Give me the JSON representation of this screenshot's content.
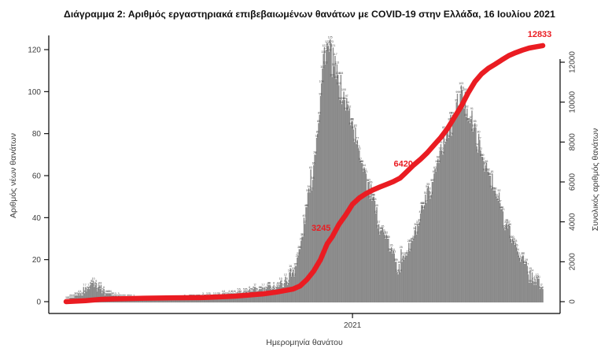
{
  "title": "Διάγραμμα 2: Αριθμός εργαστηριακά επιβεβαιωμένων θανάτων με COVID-19 στην Ελλάδα, 16 Ιουλίου 2021",
  "chart_data": {
    "type": "bar",
    "xlabel": "Ημερομηνία θανάτου",
    "ylabel_left": "Αριθμός νέων θανάτων",
    "ylabel_right": "Συνολικός αριθμός θανάτων",
    "date_range": [
      "2020-03-12",
      "2021-07-16"
    ],
    "x_ticks": [
      {
        "label": "2021",
        "date": "2021-01-01"
      }
    ],
    "ylim_left": [
      0,
      120
    ],
    "yticks_left": [
      0,
      20,
      40,
      60,
      80,
      100,
      120
    ],
    "ylim_right": [
      0,
      12833
    ],
    "yticks_right": [
      0,
      2000,
      4000,
      6000,
      8000,
      10000,
      12000
    ],
    "grid": false,
    "bar_color": "#8a8a8a",
    "bar_label_color": "#4a4a4a",
    "line_color": "#ea1c22",
    "annotation_color": "#ea1c22",
    "annotations": [
      {
        "label": "3245",
        "date": "2020-12-11",
        "value": 3245
      },
      {
        "label": "6420",
        "date": "2021-02-24",
        "value": 6420
      },
      {
        "label": "12833",
        "date": "2021-07-16",
        "value": 12833
      }
    ],
    "daily_deaths_series": {
      "name": "Αριθμός νέων θανάτων",
      "points": [
        [
          "2020-03-12",
          1
        ],
        [
          "2020-03-20",
          2
        ],
        [
          "2020-03-27",
          4
        ],
        [
          "2020-04-04",
          7
        ],
        [
          "2020-04-09",
          10
        ],
        [
          "2020-04-16",
          6
        ],
        [
          "2020-04-23",
          4
        ],
        [
          "2020-04-30",
          3
        ],
        [
          "2020-05-10",
          2
        ],
        [
          "2020-05-24",
          1
        ],
        [
          "2020-06-14",
          1
        ],
        [
          "2020-07-05",
          1
        ],
        [
          "2020-07-26",
          2
        ],
        [
          "2020-08-16",
          3
        ],
        [
          "2020-09-06",
          4
        ],
        [
          "2020-09-20",
          5
        ],
        [
          "2020-10-04",
          6
        ],
        [
          "2020-10-18",
          8
        ],
        [
          "2020-10-25",
          10
        ],
        [
          "2020-11-01",
          15
        ],
        [
          "2020-11-08",
          25
        ],
        [
          "2020-11-15",
          45
        ],
        [
          "2020-11-22",
          65
        ],
        [
          "2020-11-29",
          98
        ],
        [
          "2020-12-03",
          121
        ],
        [
          "2020-12-08",
          119
        ],
        [
          "2020-12-13",
          112
        ],
        [
          "2020-12-18",
          103
        ],
        [
          "2020-12-24",
          96
        ],
        [
          "2020-12-31",
          86
        ],
        [
          "2021-01-07",
          73
        ],
        [
          "2021-01-14",
          62
        ],
        [
          "2021-01-21",
          48
        ],
        [
          "2021-01-28",
          37
        ],
        [
          "2021-02-04",
          30
        ],
        [
          "2021-02-11",
          23
        ],
        [
          "2021-02-18",
          18
        ],
        [
          "2021-02-25",
          22
        ],
        [
          "2021-03-04",
          29
        ],
        [
          "2021-03-11",
          38
        ],
        [
          "2021-03-18",
          47
        ],
        [
          "2021-03-25",
          57
        ],
        [
          "2021-04-01",
          72
        ],
        [
          "2021-04-08",
          80
        ],
        [
          "2021-04-15",
          86
        ],
        [
          "2021-04-22",
          99
        ],
        [
          "2021-04-29",
          92
        ],
        [
          "2021-05-06",
          83
        ],
        [
          "2021-05-13",
          72
        ],
        [
          "2021-05-20",
          62
        ],
        [
          "2021-05-27",
          53
        ],
        [
          "2021-06-03",
          44
        ],
        [
          "2021-06-10",
          35
        ],
        [
          "2021-06-17",
          27
        ],
        [
          "2021-06-24",
          20
        ],
        [
          "2021-07-01",
          13
        ],
        [
          "2021-07-08",
          11
        ],
        [
          "2021-07-16",
          6
        ]
      ]
    },
    "cumulative_deaths_series": {
      "name": "Συνολικός αριθμός θανάτων",
      "points": [
        [
          "2020-03-12",
          1
        ],
        [
          "2020-04-01",
          50
        ],
        [
          "2020-04-15",
          110
        ],
        [
          "2020-05-01",
          140
        ],
        [
          "2020-06-01",
          175
        ],
        [
          "2020-07-01",
          192
        ],
        [
          "2020-08-01",
          206
        ],
        [
          "2020-09-01",
          271
        ],
        [
          "2020-10-01",
          391
        ],
        [
          "2020-10-15",
          482
        ],
        [
          "2020-11-01",
          635
        ],
        [
          "2020-11-08",
          784
        ],
        [
          "2020-11-15",
          1106
        ],
        [
          "2020-11-22",
          1527
        ],
        [
          "2020-11-29",
          2102
        ],
        [
          "2020-12-06",
          2902
        ],
        [
          "2020-12-11",
          3245
        ],
        [
          "2020-12-18",
          3870
        ],
        [
          "2020-12-25",
          4347
        ],
        [
          "2021-01-01",
          4881
        ],
        [
          "2021-01-08",
          5195
        ],
        [
          "2021-01-15",
          5421
        ],
        [
          "2021-01-22",
          5598
        ],
        [
          "2021-01-29",
          5742
        ],
        [
          "2021-02-05",
          5878
        ],
        [
          "2021-02-12",
          6017
        ],
        [
          "2021-02-19",
          6194
        ],
        [
          "2021-02-24",
          6420
        ],
        [
          "2021-03-05",
          6843
        ],
        [
          "2021-03-12",
          7133
        ],
        [
          "2021-03-19",
          7462
        ],
        [
          "2021-03-26",
          7851
        ],
        [
          "2021-04-02",
          8232
        ],
        [
          "2021-04-09",
          8680
        ],
        [
          "2021-04-16",
          9239
        ],
        [
          "2021-04-23",
          9788
        ],
        [
          "2021-04-30",
          10453
        ],
        [
          "2021-05-07",
          11017
        ],
        [
          "2021-05-14",
          11415
        ],
        [
          "2021-05-21",
          11697
        ],
        [
          "2021-05-28",
          11903
        ],
        [
          "2021-06-04",
          12122
        ],
        [
          "2021-06-11",
          12331
        ],
        [
          "2021-06-18",
          12478
        ],
        [
          "2021-06-25",
          12605
        ],
        [
          "2021-07-02",
          12710
        ],
        [
          "2021-07-09",
          12773
        ],
        [
          "2021-07-16",
          12833
        ]
      ]
    }
  }
}
